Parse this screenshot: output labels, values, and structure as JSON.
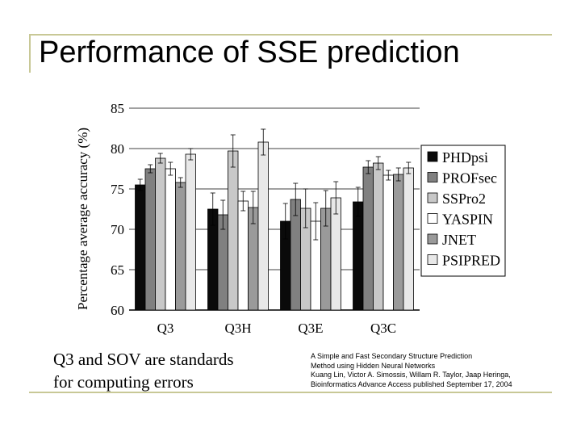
{
  "slide": {
    "title": "Performance of SSE prediction",
    "caption_lines": [
      "Q3 and SOV are standards",
      "for computing errors"
    ],
    "citation_lines": [
      "A Simple and Fast Secondary Structure Prediction",
      "Method using Hidden Neural Networks",
      "Kuang Lin, Victor A. Simossis, Willam R. Taylor, Jaap Heringa,",
      "Bioinformatics Advance Access published September 17, 2004"
    ],
    "accent_color": "#c8c896"
  },
  "chart_data": {
    "type": "bar",
    "ylabel": "Percentage average accuracy (%)",
    "xlabel": "",
    "ylim": [
      60,
      85
    ],
    "yticks": [
      60,
      65,
      70,
      75,
      80,
      85
    ],
    "categories": [
      "Q3",
      "Q3H",
      "Q3E",
      "Q3C"
    ],
    "legend_position": "right",
    "grid": true,
    "series": [
      {
        "name": "PHDpsi",
        "color": "#0a0a0a",
        "values": [
          75.5,
          72.5,
          71.0,
          73.4
        ],
        "errors": [
          0.7,
          2.0,
          2.2,
          1.8
        ]
      },
      {
        "name": "PROFsec",
        "color": "#808080",
        "values": [
          77.5,
          71.8,
          73.7,
          77.7
        ],
        "errors": [
          0.5,
          1.8,
          2.0,
          0.8
        ]
      },
      {
        "name": "SSPro2",
        "color": "#c8c8c8",
        "values": [
          78.8,
          79.7,
          72.6,
          78.2
        ],
        "errors": [
          0.6,
          2.0,
          2.4,
          0.8
        ]
      },
      {
        "name": "YASPIN",
        "color": "#ffffff",
        "values": [
          77.5,
          73.5,
          71.0,
          76.7
        ],
        "errors": [
          0.8,
          1.2,
          2.3,
          0.6
        ]
      },
      {
        "name": "JNET",
        "color": "#9a9a9a",
        "values": [
          75.8,
          72.7,
          72.6,
          76.8
        ],
        "errors": [
          0.6,
          2.0,
          2.2,
          0.8
        ]
      },
      {
        "name": "PSIPRED",
        "color": "#e8e8e8",
        "values": [
          79.3,
          80.8,
          73.9,
          77.6
        ],
        "errors": [
          0.7,
          1.6,
          2.0,
          0.7
        ]
      }
    ]
  }
}
